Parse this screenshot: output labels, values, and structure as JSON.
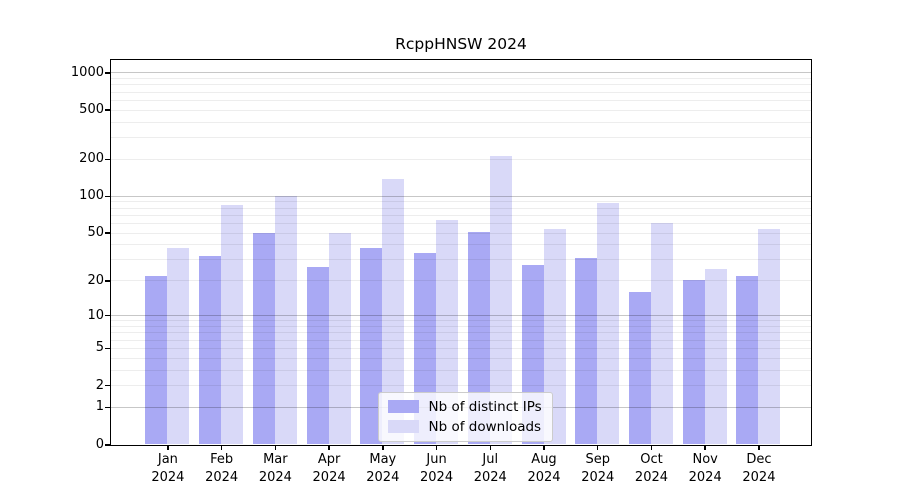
{
  "title": "RcppHNSW 2024",
  "chart_data": {
    "type": "bar",
    "title": "RcppHNSW 2024",
    "yscale": "log1p",
    "categories": [
      "Jan 2024",
      "Feb 2024",
      "Mar 2024",
      "Apr 2024",
      "May 2024",
      "Jun 2024",
      "Jul 2024",
      "Aug 2024",
      "Sep 2024",
      "Oct 2024",
      "Nov 2024",
      "Dec 2024"
    ],
    "series": [
      {
        "name": "Nb of distinct IPs",
        "color": "#a9a9f4",
        "values": [
          22,
          32,
          50,
          26,
          37,
          34,
          51,
          27,
          31,
          16,
          20,
          22
        ]
      },
      {
        "name": "Nb of downloads",
        "color": "#d9d9f8",
        "values": [
          37,
          85,
          100,
          50,
          137,
          63,
          210,
          54,
          88,
          60,
          25,
          54
        ]
      }
    ],
    "yticks": [
      0,
      1,
      2,
      5,
      10,
      20,
      50,
      100,
      200,
      500,
      1000
    ],
    "ylim": [
      0,
      1270
    ],
    "grid": true,
    "grid_over_bars": true,
    "legend_position": "lower center",
    "colors": {
      "major_grid": "#c7c7c7",
      "minor_grid": "#ededed",
      "axis": "#000000",
      "background": "#ffffff"
    }
  }
}
